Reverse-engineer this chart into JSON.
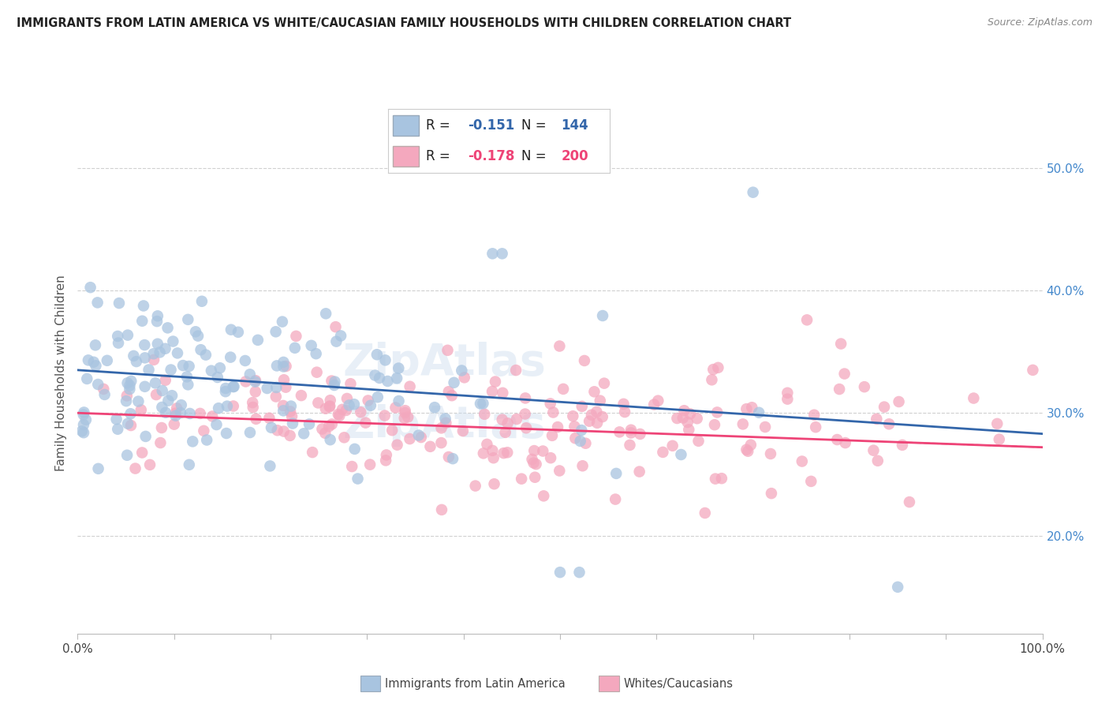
{
  "title": "IMMIGRANTS FROM LATIN AMERICA VS WHITE/CAUCASIAN FAMILY HOUSEHOLDS WITH CHILDREN CORRELATION CHART",
  "source": "Source: ZipAtlas.com",
  "ylabel": "Family Households with Children",
  "ytick_labels": [
    "20.0%",
    "30.0%",
    "40.0%",
    "50.0%"
  ],
  "ytick_values": [
    0.2,
    0.3,
    0.4,
    0.5
  ],
  "xlim": [
    0.0,
    1.0
  ],
  "ylim": [
    0.12,
    0.545
  ],
  "blue_R": -0.151,
  "blue_N": 144,
  "pink_R": -0.178,
  "pink_N": 200,
  "blue_color": "#a8c4e0",
  "pink_color": "#f4a8be",
  "blue_line_color": "#3366aa",
  "pink_line_color": "#ee4477",
  "legend_label_blue": "Immigrants from Latin America",
  "legend_label_pink": "Whites/Caucasians",
  "blue_R_str": "-0.151",
  "blue_N_str": "144",
  "pink_R_str": "-0.178",
  "pink_N_str": "200"
}
